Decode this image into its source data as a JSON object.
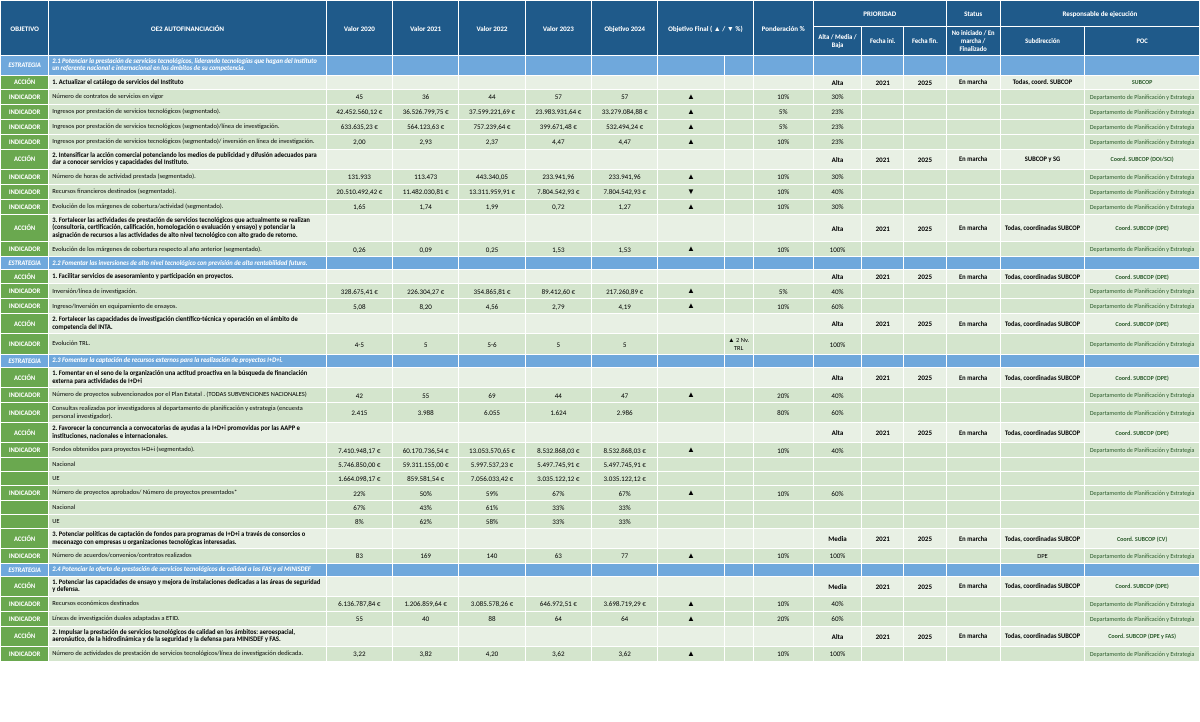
{
  "headers": {
    "top": [
      "OBJETIVO",
      "OE2 AUTOFINANCIACIÓN",
      "Valor 2020",
      "Valor 2021",
      "Valor 2022",
      "Valor 2023",
      "Objetivo 2024",
      "Objetivo Final ( ▲ / ▼  %)",
      "Ponderación %",
      "PRIORIDAD",
      "Status",
      "Responsable de ejecución"
    ],
    "sub": [
      "Alta / Media / Baja",
      "Fecha ini.",
      "Fecha fin.",
      "No iniciado / En marcha / Finalizado",
      "Subdirección",
      "POC"
    ]
  },
  "rows": [
    {
      "type": "estrategia",
      "tag": "ESTRATEGIA",
      "desc": "2.1 Potenciar la prestación de servicios tecnológicos, liderando tecnologías que hagan del Instituto un referente nacional e internacional en los ámbitos de su competencia."
    },
    {
      "type": "accion",
      "tag": "ACCIÓN",
      "desc": "1. Actualizar el catálogo de servicios del Instituto",
      "pri": "Alta",
      "ini": "2021",
      "fin": "2025",
      "status": "En marcha",
      "sub": "Todas, coord. SUBCOP",
      "poc": "SUBCOP"
    },
    {
      "type": "indicador",
      "tag": "INDICADOR",
      "desc": "Número de contratos de servicios en vigor",
      "v": [
        "45",
        "36",
        "44",
        "57",
        "57"
      ],
      "trend": "▲",
      "tpct": "",
      "pond": "10%",
      "objfin": "30%",
      "poc": "Departamento de Planificación y Estrategia"
    },
    {
      "type": "indicador",
      "tag": "INDICADOR",
      "desc": "Ingresos por prestación de servicios tecnológicos (segmentado).",
      "v": [
        "42.452.560,12 €",
        "36.526.799,75 €",
        "37.599.221,69 €",
        "23.983.931,64 €",
        "33.279.084,88 €"
      ],
      "trend": "▲",
      "pond": "5%",
      "objfin": "23%",
      "poc": "Departamento de Planificación y Estrategia"
    },
    {
      "type": "indicador",
      "tag": "INDICADOR",
      "desc": "Ingresos por prestación de servicios tecnológicos (segmentado)/línea de investigación.",
      "v": [
        "633.635,23 €",
        "564.123,63 €",
        "757.239,64 €",
        "399.671,48 €",
        "532.494,24 €"
      ],
      "trend": "▲",
      "pond": "5%",
      "objfin": "23%",
      "poc": "Departamento de Planificación y Estrategia"
    },
    {
      "type": "indicador",
      "tag": "INDICADOR",
      "desc": "Ingresos por prestación de servicios tecnológicos (segmentado)/ inversión en línea de investigación.",
      "v": [
        "2,00",
        "2,93",
        "2,37",
        "4,47",
        "4,47"
      ],
      "trend": "▲",
      "pond": "10%",
      "objfin": "23%",
      "poc": "Departamento de Planificación y Estrategia"
    },
    {
      "type": "accion",
      "tag": "ACCIÓN",
      "desc": "2. Intensificar la acción comercial potenciando los medios de publicidad y difusión adecuados para dar a conocer servicios y capacidades del Instituto.",
      "pri": "Alta",
      "ini": "2021",
      "fin": "2025",
      "status": "En marcha",
      "sub": "SUBCOP y SG",
      "poc": "Coord. SUBCOP (DOI/SCI)"
    },
    {
      "type": "indicador",
      "tag": "INDICADOR",
      "desc": "Número de horas de actividad prestada (segmentado).",
      "v": [
        "131.933",
        "113.473",
        "443.340,05",
        "233.941,96",
        "233.941,96"
      ],
      "trend": "▲",
      "pond": "10%",
      "objfin": "30%",
      "poc": "Departamento de Planificación y Estrategia"
    },
    {
      "type": "indicador",
      "tag": "INDICADOR",
      "desc": "Recursos financieros destinados (segmentado).",
      "v": [
        "20.510.492,42 €",
        "11.482.030,81 €",
        "13.311.959,91 €",
        "7.804.542,93 €",
        "7.804.542,93 €"
      ],
      "trend": "▼",
      "pond": "10%",
      "objfin": "40%",
      "poc": "Departamento de Planificación y Estrategia"
    },
    {
      "type": "indicador",
      "tag": "INDICADOR",
      "desc": "Evolución de los márgenes de cobertura/actividad (segmentado).",
      "v": [
        "1,65",
        "1,74",
        "1,99",
        "0,72",
        "1,27"
      ],
      "trend": "▲",
      "pond": "10%",
      "objfin": "30%",
      "poc": "Departamento de Planificación y Estrategia"
    },
    {
      "type": "accion",
      "tag": "ACCIÓN",
      "desc": "3. Fortalecer las actividades de prestación de servicios tecnológicos que actualmente se realizan (consultoría, certificación, calificación, homologación o evaluación y ensayo) y potenciar la asignación de recursos a las actividades de alto nivel tecnológico con alto grado de retorno.",
      "pri": "Alta",
      "ini": "2021",
      "fin": "2025",
      "status": "En marcha",
      "sub": "Todas, coordinadas SUBCOP",
      "poc": "Coord. SUBCOP (DPE)"
    },
    {
      "type": "indicador",
      "tag": "INDICADOR",
      "desc": "Evolución de los márgenes de cobertura respecto al año anterior (segmentado).",
      "v": [
        "0,26",
        "0,09",
        "0,25",
        "1,53",
        "1,53"
      ],
      "trend": "▲",
      "pond": "10%",
      "objfin": "100%",
      "poc": "Departamento de Planificación y Estrategia"
    },
    {
      "type": "estrategia",
      "tag": "ESTRATEGIA",
      "desc": "2.2 Fomentar las inversiones de alto nivel tecnológico con previsión de alta rentabilidad futura."
    },
    {
      "type": "accion",
      "tag": "ACCIÓN",
      "desc": "1. Facilitar servicios de asesoramiento y participación en proyectos.",
      "pri": "Alta",
      "ini": "2021",
      "fin": "2025",
      "status": "En marcha",
      "sub": "Todas, coordinadas SUBCOP",
      "poc": "Coord. SUBCOP (DPE)"
    },
    {
      "type": "indicador",
      "tag": "INDICADOR",
      "desc": "Inversión/línea de investigación.",
      "v": [
        "328.675,41 €",
        "226.304,27 €",
        "354.865,81 €",
        "89.412,60 €",
        "217.260,89 €"
      ],
      "trend": "▲",
      "pond": "5%",
      "objfin": "40%",
      "poc": "Departamento de Planificación y Estrategia"
    },
    {
      "type": "indicador",
      "tag": "INDICADOR",
      "desc": "Ingreso/Inversión en equipamiento de ensayos.",
      "v": [
        "5,08",
        "8,20",
        "4,56",
        "2,79",
        "4,19"
      ],
      "trend": "▲",
      "pond": "10%",
      "objfin": "60%",
      "poc": "Departamento de Planificación y Estrategia"
    },
    {
      "type": "accion",
      "tag": "ACCIÓN",
      "desc": "2. Fortalecer las capacidades de investigación científico-técnica y operación en el ámbito de competencia del INTA.",
      "pri": "Alta",
      "ini": "2021",
      "fin": "2025",
      "status": "En marcha",
      "sub": "Todas, coordinadas SUBCOP",
      "poc": "Coord. SUBCOP (DPE)"
    },
    {
      "type": "indicador",
      "tag": "INDICADOR",
      "desc": "Evolución TRL.",
      "v": [
        "4-5",
        "5",
        "5-6",
        "5",
        "5"
      ],
      "trend": "",
      "tpct": "▲ 2 Nv. TRL",
      "pond": "",
      "objfin": "100%",
      "poc": "Departamento de Planificación y Estrategia"
    },
    {
      "type": "estrategia",
      "tag": "ESTRATEGIA",
      "desc": "2.3 Fomentar la captación de recursos externos para la realización de proyectos I+D+i."
    },
    {
      "type": "accion",
      "tag": "ACCIÓN",
      "desc": "1. Fomentar en el seno de la organización una actitud proactiva en la búsqueda de financiación externa para actividades de I+D+i",
      "pri": "Alta",
      "ini": "2021",
      "fin": "2025",
      "status": "En marcha",
      "sub": "Todas, coordinadas SUBCOP",
      "poc": "Coord. SUBCOP (DPE)"
    },
    {
      "type": "indicador",
      "tag": "INDICADOR",
      "desc": "Número de proyectos subvencionados por el Plan Estatal . (TODAS SUBVENCIONES NACIONALES)",
      "v": [
        "42",
        "55",
        "69",
        "44",
        "47"
      ],
      "trend": "▲",
      "pond": "20%",
      "objfin": "40%",
      "poc": "Departamento de Planificación y Estrategia"
    },
    {
      "type": "indicador",
      "tag": "INDICADOR",
      "desc": "Consultas realizadas por investigadores al departamento de planificación y estrategia (encuesta personal investigador).",
      "v": [
        "2.415",
        "3.988",
        "6.055",
        "1.624",
        "2.986"
      ],
      "trend": "",
      "pond": "80%",
      "objfin": "60%",
      "poc": "Departamento de Planificación y Estrategia"
    },
    {
      "type": "accion",
      "tag": "ACCIÓN",
      "desc": "2. Favorecer la concurrencia a convocatorias de ayudas a la I+D+i promovidas por las AAPP e instituciones, nacionales e internacionales.",
      "pri": "Alta",
      "ini": "2021",
      "fin": "2025",
      "status": "En marcha",
      "sub": "Todas, coordinadas SUBCOP",
      "poc": "Coord. SUBCOP (DPE)"
    },
    {
      "type": "indicador",
      "tag": "INDICADOR",
      "desc": "Fondos obtenidos para proyectos I+D+i (segmentado).",
      "v": [
        "7.410.948,17 €",
        "60.170.736,54 €",
        "13.053.570,65 €",
        "8.532.868,03 €",
        "8.532.868,03 €"
      ],
      "trend": "▲",
      "pond": "10%",
      "objfin": "40%",
      "poc": "Departamento de Planificación y Estrategia"
    },
    {
      "type": "indicador",
      "tag": "",
      "desc": "Nacional",
      "v": [
        "5.746.850,00 €",
        "59.311.155,00 €",
        "5.997.537,23 €",
        "5.497.745,91 €",
        "5.497.745,91 €"
      ]
    },
    {
      "type": "indicador",
      "tag": "",
      "desc": "UE",
      "v": [
        "1.664.098,17 €",
        "859.581,54 €",
        "7.056.033,42 €",
        "3.035.122,12 €",
        "3.035.122,12 €"
      ]
    },
    {
      "type": "indicador",
      "tag": "INDICADOR",
      "desc": "Número de proyectos aprobados/ Número de proyectos presentados*",
      "v": [
        "22%",
        "50%",
        "59%",
        "67%",
        "67%"
      ],
      "trend": "▲",
      "pond": "10%",
      "objfin": "60%",
      "poc": "Departamento de Planificación y Estrategia"
    },
    {
      "type": "indicador",
      "tag": "",
      "desc": "Nacional",
      "v": [
        "67%",
        "43%",
        "61%",
        "33%",
        "33%"
      ]
    },
    {
      "type": "indicador",
      "tag": "",
      "desc": "UE",
      "v": [
        "8%",
        "62%",
        "58%",
        "33%",
        "33%"
      ]
    },
    {
      "type": "accion",
      "tag": "ACCIÓN",
      "desc": "3. Potenciar políticas de captación de fondos para programas de I+D+i a través de consorcios o mecenazgo con empresas u organizaciones tecnológicas interesadas.",
      "pri": "Media",
      "ini": "2021",
      "fin": "2025",
      "status": "En marcha",
      "sub": "Todas, coordinadas SUBCOP",
      "poc": "Coord. SUBCOP (CV)"
    },
    {
      "type": "indicador",
      "tag": "INDICADOR",
      "desc": "Número de acuerdos/convenios/contratos realizados",
      "v": [
        "83",
        "169",
        "140",
        "63",
        "77"
      ],
      "trend": "▲",
      "pond": "10%",
      "objfin": "100%",
      "sub": "DPE",
      "poc": "Departamento de Planificación y Estrategia"
    },
    {
      "type": "estrategia",
      "tag": "ESTRATEGIA",
      "desc": "2.4 Potenciar la oferta de prestación de servicios tecnológicos de calidad a las FAS y al MINISDEF"
    },
    {
      "type": "accion",
      "tag": "ACCIÓN",
      "desc": "1. Potenciar las capacidades de ensayo y mejora de instalaciones dedicadas a las áreas de seguridad y defensa.",
      "pri": "Media",
      "ini": "2021",
      "fin": "2025",
      "status": "En marcha",
      "sub": "Todas, coordinadas SUBCOP",
      "poc": "Coord. SUBCOP (DPE)"
    },
    {
      "type": "indicador",
      "tag": "INDICADOR",
      "desc": "Recursos económicos destinados",
      "v": [
        "6.136.787,84 €",
        "1.206.859,64 €",
        "3.085.578,26 €",
        "646.972,51 €",
        "3.698.719,29 €"
      ],
      "trend": "▲",
      "pond": "10%",
      "objfin": "40%",
      "poc": "Departamento de Planificación y Estrategia"
    },
    {
      "type": "indicador",
      "tag": "INDICADOR",
      "desc": "Líneas de investigación duales adaptadas a ETID.",
      "v": [
        "55",
        "40",
        "88",
        "64",
        "64"
      ],
      "trend": "▲",
      "pond": "20%",
      "objfin": "60%",
      "poc": "Departamento de Planificación y Estrategia"
    },
    {
      "type": "accion",
      "tag": "ACCIÓN",
      "desc": "2. Impulsar la prestación de servicios tecnológicos de calidad en los ámbitos: aeroespacial, aeronáutico, de la hidrodinámica y de la seguridad y la defensa para MINISDEF y FAS.",
      "pri": "Alta",
      "ini": "2021",
      "fin": "2025",
      "status": "En marcha",
      "sub": "Todas, coordinadas SUBCOP",
      "poc": "Coord. SUBCOP (DPE y FAS)"
    },
    {
      "type": "indicador",
      "tag": "INDICADOR",
      "desc": "Número de actividades de prestación de servicios tecnológicos/línea de investigación dedicada.",
      "v": [
        "3,22",
        "3,82",
        "4,20",
        "3,62",
        "3,62"
      ],
      "trend": "▲",
      "pond": "10%",
      "objfin": "100%",
      "poc": "Departamento de Planificación y Estrategia"
    }
  ]
}
